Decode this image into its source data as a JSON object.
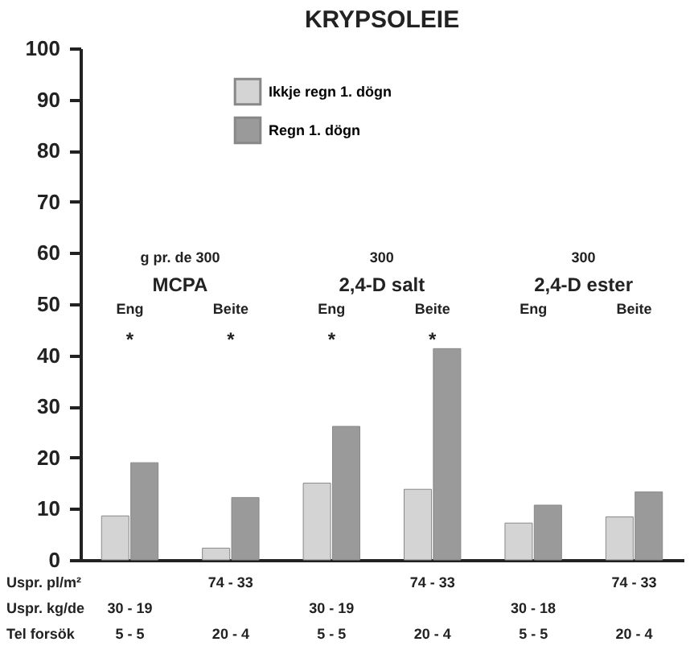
{
  "chart_data": {
    "type": "bar",
    "title": "KRYPSOLEIE",
    "categories": [
      "Eng",
      "Beite",
      "Eng",
      "Beite",
      "Eng",
      "Beite"
    ],
    "series": [
      {
        "name": "Ikkje regn 1. dögn",
        "color": "#d4d4d4",
        "values": [
          8.6,
          2.3,
          15.0,
          13.8,
          7.2,
          8.4
        ]
      },
      {
        "name": "Regn 1. dögn",
        "color": "#9a9a9a",
        "values": [
          19.0,
          12.2,
          26.1,
          41.3,
          10.7,
          13.3
        ]
      }
    ],
    "ylim": [
      0,
      100
    ],
    "yticks": [
      0,
      10,
      20,
      30,
      40,
      50,
      60,
      70,
      80,
      90,
      100
    ],
    "grid": false,
    "legend": "top",
    "annotations": [
      "g pr. de 300",
      "MCPA",
      "300",
      "2,4-D salt",
      "300",
      "2,4-D ester",
      "*",
      "*",
      "*",
      "*",
      "Uspr. pl/m²",
      "74 - 33",
      "74 - 33",
      "74 - 33",
      "Uspr. kg/de",
      "30 - 19",
      "30 - 19",
      "30 - 18",
      "Tel forsök",
      "5 - 5",
      "20 - 4",
      "5 - 5",
      "20 - 4",
      "5 - 5",
      "20 - 4"
    ]
  }
}
